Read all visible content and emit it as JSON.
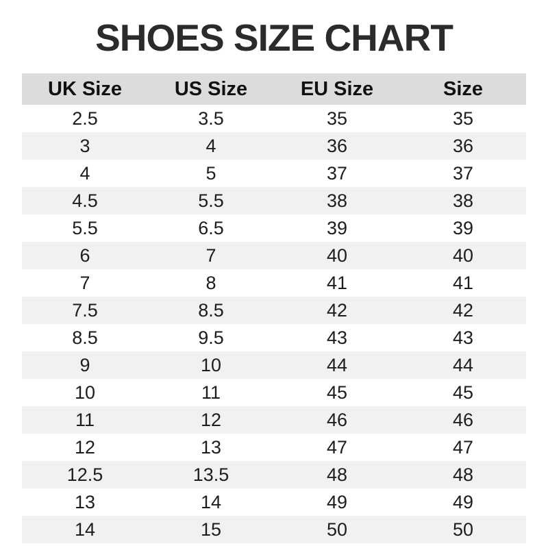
{
  "chart_data": {
    "type": "table",
    "title": "SHOES SIZE CHART",
    "columns": [
      "UK Size",
      "US Size",
      "EU Size",
      "Size"
    ],
    "rows": [
      [
        "2.5",
        "3.5",
        "35",
        "35"
      ],
      [
        "3",
        "4",
        "36",
        "36"
      ],
      [
        "4",
        "5",
        "37",
        "37"
      ],
      [
        "4.5",
        "5.5",
        "38",
        "38"
      ],
      [
        "5.5",
        "6.5",
        "39",
        "39"
      ],
      [
        "6",
        "7",
        "40",
        "40"
      ],
      [
        "7",
        "8",
        "41",
        "41"
      ],
      [
        "7.5",
        "8.5",
        "42",
        "42"
      ],
      [
        "8.5",
        "9.5",
        "43",
        "43"
      ],
      [
        "9",
        "10",
        "44",
        "44"
      ],
      [
        "10",
        "11",
        "45",
        "45"
      ],
      [
        "11",
        "12",
        "46",
        "46"
      ],
      [
        "12",
        "13",
        "47",
        "47"
      ],
      [
        "12.5",
        "13.5",
        "48",
        "48"
      ],
      [
        "13",
        "14",
        "49",
        "49"
      ],
      [
        "14",
        "15",
        "50",
        "50"
      ]
    ]
  },
  "colors": {
    "header_bg": "#dcdcdc",
    "row_alt_bg": "#f1f1f1",
    "title_color": "#2b2b2b",
    "text_color": "#1d1d1d",
    "header_text": "#111111",
    "page_bg": "#ffffff"
  }
}
